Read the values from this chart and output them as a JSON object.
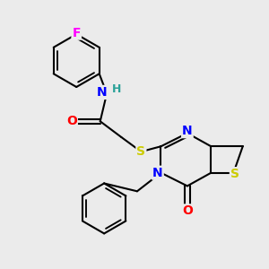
{
  "bg_color": "#ebebeb",
  "bond_color": "#000000",
  "bond_width": 1.5,
  "atom_colors": {
    "F": "#ff00ff",
    "N": "#0000ff",
    "O": "#ff0000",
    "S": "#cccc00",
    "H": "#2aa198",
    "C": "#000000"
  },
  "figsize": [
    3.0,
    3.0
  ],
  "dpi": 100
}
